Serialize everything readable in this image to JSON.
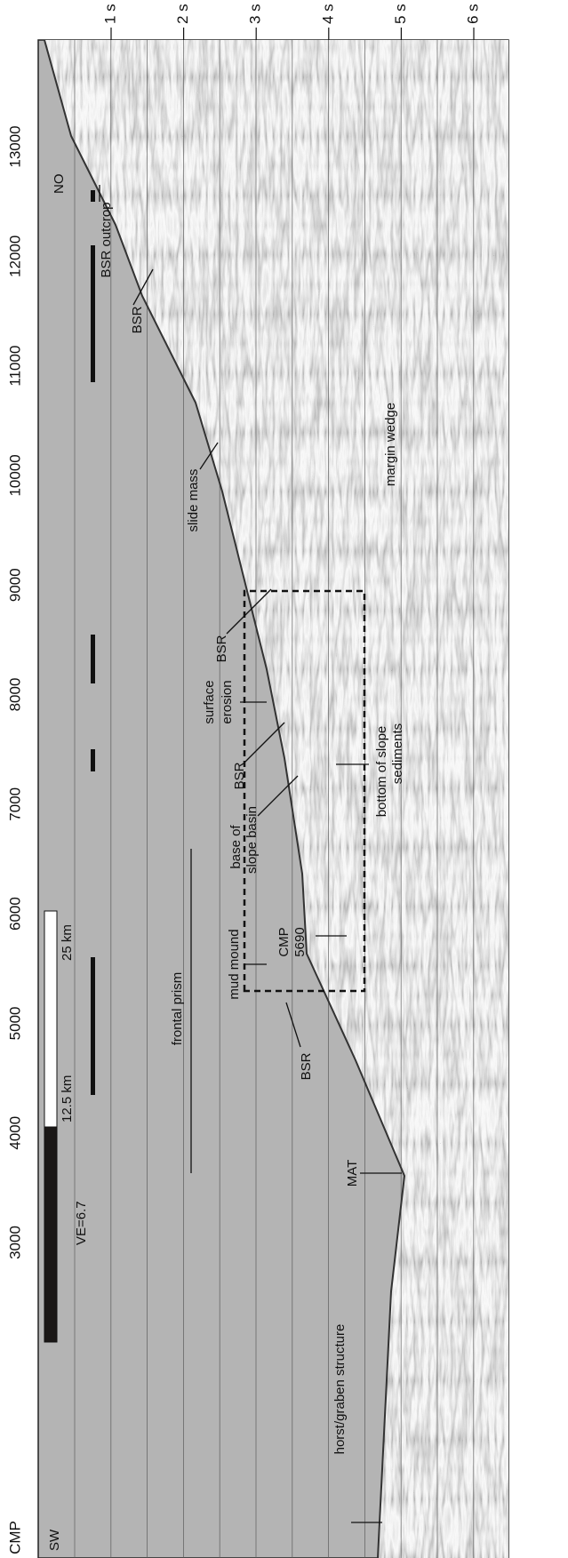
{
  "axes": {
    "cmp_label": "CMP",
    "cmp_ticks": [
      3000,
      4000,
      5000,
      6000,
      7000,
      8000,
      9000,
      10000,
      11000,
      12000,
      13000
    ],
    "time_ticks": [
      "1 s",
      "2 s",
      "3 s",
      "4 s",
      "5 s",
      "6 s"
    ]
  },
  "directions": {
    "left": "SW",
    "right": "NO"
  },
  "scale_bar": {
    "exaggeration": "VE=6.7",
    "mid": "12.5 km",
    "end": "25 km"
  },
  "annotations": [
    "horst/graben structure",
    "MAT",
    "frontal prism",
    "mud mound",
    "CMP",
    "5690",
    "BSR",
    "base of",
    "slope basin",
    "BSR",
    "surface",
    "erosion",
    "BSR",
    "bottom of slope",
    "sediments",
    "slide mass",
    "margin wedge",
    "BSR",
    "BSR outcrop"
  ]
}
